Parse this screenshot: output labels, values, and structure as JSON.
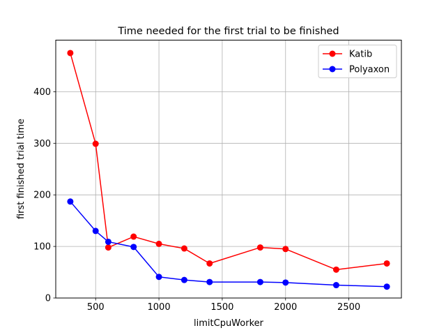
{
  "chart_data": {
    "type": "line",
    "title": "Time needed for the first trial to be finished",
    "xlabel": "limitCpuWorker",
    "ylabel": "first finished trial time",
    "xlim": [
      185,
      2915
    ],
    "ylim": [
      0,
      500
    ],
    "xticks": [
      500,
      1000,
      1500,
      2000,
      2500
    ],
    "yticks": [
      0,
      100,
      200,
      300,
      400
    ],
    "grid": true,
    "legend_position": "top-right",
    "x": [
      300,
      500,
      600,
      800,
      1000,
      1200,
      1400,
      1800,
      2000,
      2400,
      2800
    ],
    "series": [
      {
        "name": "Katib",
        "color": "#ff0000",
        "marker": "circle",
        "values": [
          475,
          299,
          98,
          119,
          105,
          96,
          67,
          98,
          95,
          55,
          67
        ]
      },
      {
        "name": "Polyaxon",
        "color": "#0000ff",
        "marker": "circle",
        "values": [
          187,
          130,
          109,
          99,
          41,
          35,
          31,
          31,
          30,
          25,
          22
        ]
      }
    ]
  }
}
